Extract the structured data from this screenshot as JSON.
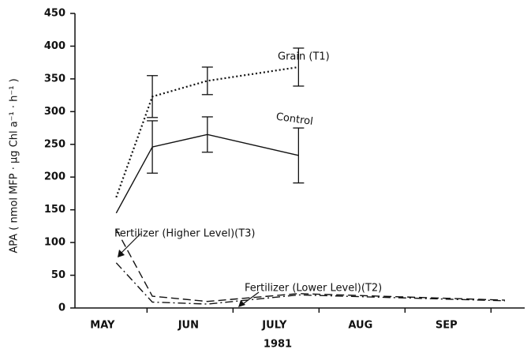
{
  "chart_data": {
    "type": "line",
    "xlabel": "1981",
    "ylabel": "APA ( nmol MFP · µg Chl a⁻¹ · h⁻¹ )",
    "x": [
      5.16,
      5.58,
      6.22,
      7.28,
      9.68
    ],
    "xlim": [
      4.68,
      9.91
    ],
    "xticks": [
      {
        "value": 5,
        "label": "MAY"
      },
      {
        "value": 6,
        "label": "JUN"
      },
      {
        "value": 7,
        "label": "JULY"
      },
      {
        "value": 8,
        "label": "AUG"
      },
      {
        "value": 9,
        "label": "SEP"
      }
    ],
    "ylim": [
      0,
      450
    ],
    "yticks": [
      0,
      50,
      100,
      150,
      200,
      250,
      300,
      350,
      400,
      450
    ],
    "grid": false,
    "series": [
      {
        "name": "Grain (T1)",
        "color": "#111111",
        "dash": "dotted",
        "values": [
          169,
          323,
          347,
          368,
          null
        ],
        "errors": [
          null,
          32,
          21,
          29,
          null
        ]
      },
      {
        "name": "Control",
        "color": "#111111",
        "dash": "solid",
        "values": [
          145,
          246,
          265,
          233,
          null
        ],
        "errors": [
          null,
          40,
          27,
          42,
          null
        ]
      },
      {
        "name": "Fertilizer (Higher Level)(T3)",
        "color": "#111111",
        "dash": "dashed",
        "values": [
          120,
          18,
          10,
          22,
          12
        ]
      },
      {
        "name": "Fertilizer (Lower Level)(T2)",
        "color": "#111111",
        "dash": "dashdot",
        "values": [
          69,
          9,
          6,
          20,
          11
        ]
      }
    ]
  }
}
